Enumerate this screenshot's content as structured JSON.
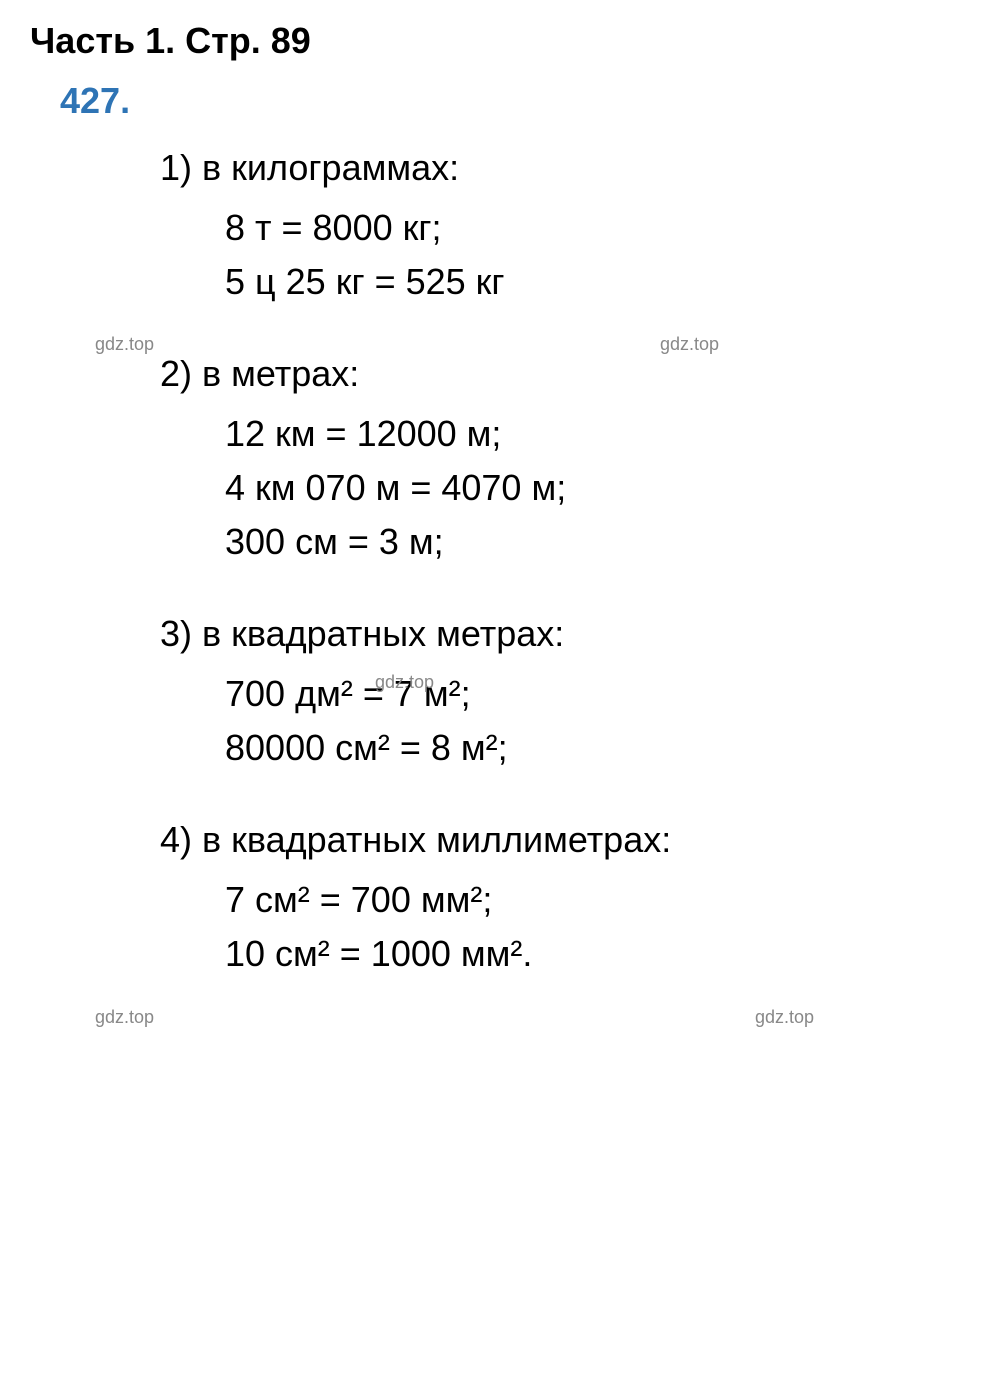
{
  "header": "Часть 1. Стр. 89",
  "problem_number": "427.",
  "sections": [
    {
      "title": "1) в килограммах:",
      "lines": [
        "8 т = 8000 кг;",
        "5 ц 25 кг = 525 кг"
      ]
    },
    {
      "title": "2) в метрах:",
      "lines": [
        "12 км = 12000 м;",
        "4 км 070 м = 4070 м;",
        "300 см = 3 м;"
      ]
    },
    {
      "title": "3) в квадратных метрах:",
      "lines": [
        "700 дм² = 7 м²;",
        "80000 см² = 8 м²;"
      ]
    },
    {
      "title": "4) в квадратных миллиметрах:",
      "lines": [
        "7 см² = 700 мм²;",
        "10 см² = 1000 мм²."
      ]
    }
  ],
  "watermarks": {
    "text": "gdz.top"
  },
  "colors": {
    "header_color": "#000000",
    "problem_number_color": "#2e74b5",
    "text_color": "#000000",
    "watermark_color": "#888888",
    "background": "#ffffff"
  },
  "typography": {
    "font_family": "Arial, Helvetica, sans-serif",
    "header_fontsize": 36,
    "body_fontsize": 36,
    "watermark_fontsize": 18
  }
}
